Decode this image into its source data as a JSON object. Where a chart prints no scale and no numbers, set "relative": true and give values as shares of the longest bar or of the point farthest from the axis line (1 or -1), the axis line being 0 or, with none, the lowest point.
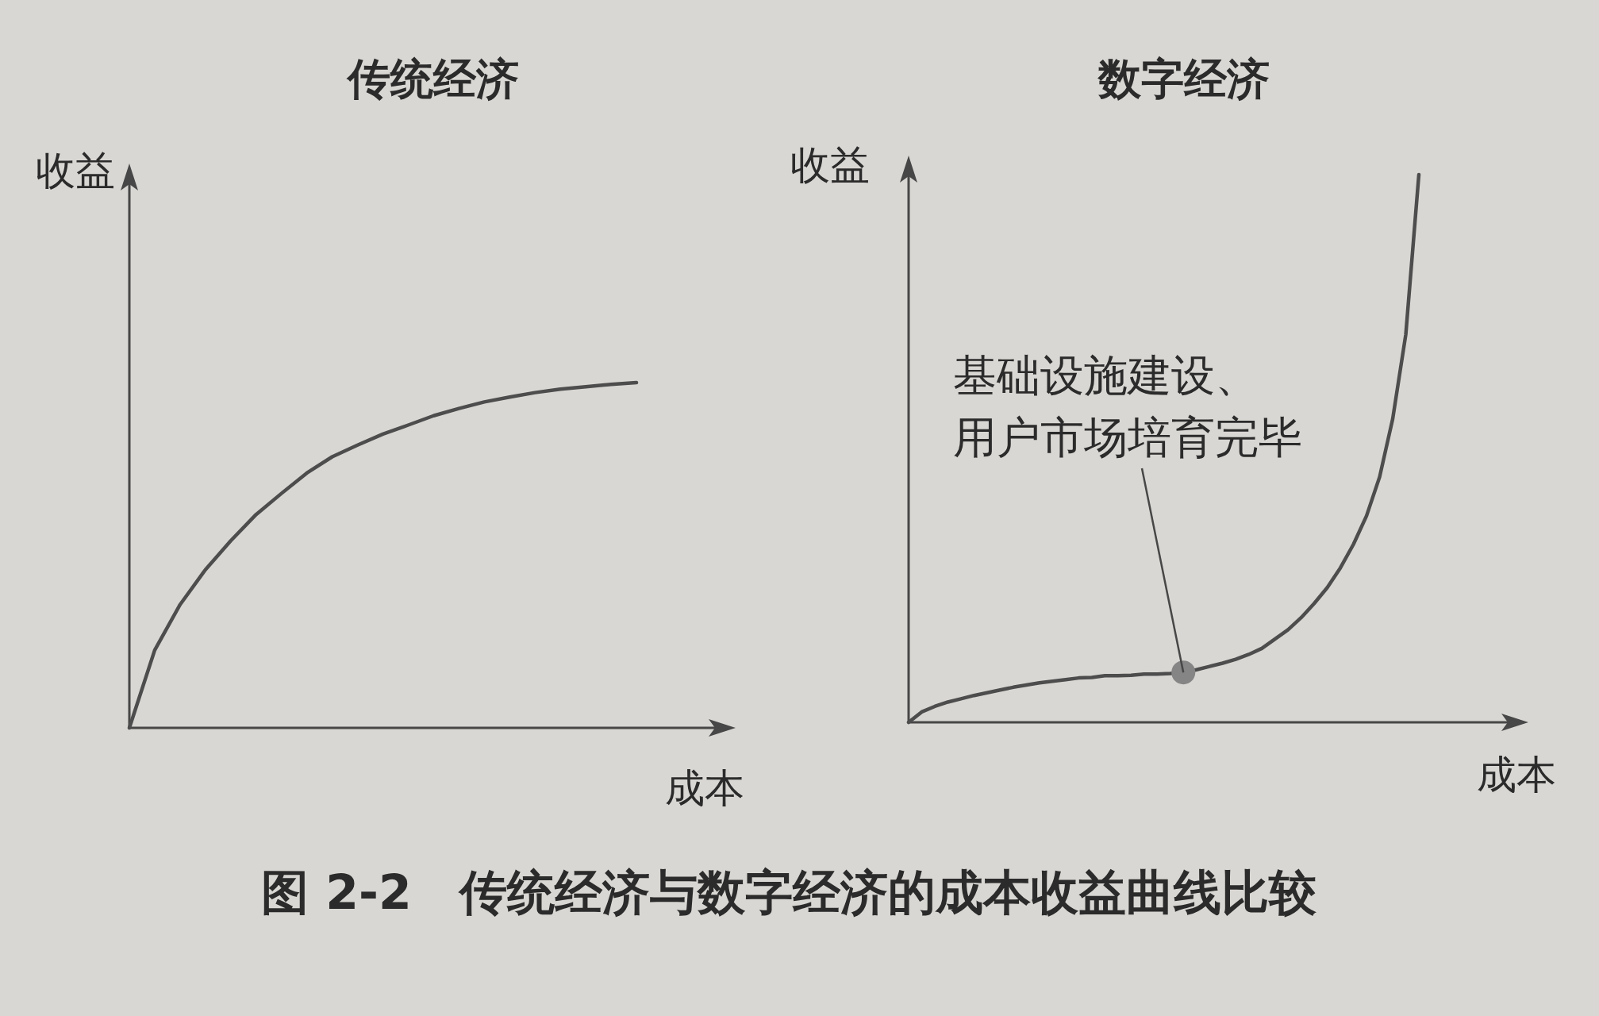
{
  "chart_data": [
    {
      "type": "line",
      "title": "传统经济",
      "xlabel": "成本",
      "ylabel": "收益",
      "relative": true,
      "categories": [
        null,
        null,
        null,
        null,
        null,
        null,
        null,
        null,
        null,
        null,
        null,
        null,
        null,
        null,
        null,
        null,
        null,
        null,
        null,
        null,
        null
      ],
      "series": [
        {
          "color": "#4d4d4d",
          "values": [
            0,
            0.225,
            0.357,
            0.458,
            0.542,
            0.618,
            0.679,
            0.738,
            0.785,
            0.819,
            0.851,
            0.877,
            0.904,
            0.925,
            0.944,
            0.958,
            0.971,
            0.981,
            0.988,
            0.995,
            1
          ]
        }
      ]
    },
    {
      "type": "line",
      "title": "数字经济",
      "xlabel": "成本",
      "ylabel": "收益",
      "relative": true,
      "categories": [
        null,
        null,
        null,
        null,
        null,
        null,
        null,
        null,
        null,
        null,
        null,
        null,
        null,
        null,
        null,
        null,
        null,
        null,
        null,
        null,
        null,
        null,
        null,
        null,
        null,
        null,
        null,
        null,
        null,
        null,
        null,
        null,
        null,
        null,
        null,
        null,
        null,
        null,
        null,
        null
      ],
      "series": [
        {
          "color": "#4d4d4d",
          "values": [
            0,
            0.019,
            0.029,
            0.037,
            0.043,
            0.049,
            0.054,
            0.059,
            0.064,
            0.068,
            0.072,
            0.075,
            0.078,
            0.081,
            0.082,
            0.085,
            0.085,
            0.086,
            0.088,
            0.088,
            0.089,
            0.091,
            0.096,
            0.102,
            0.108,
            0.115,
            0.124,
            0.135,
            0.152,
            0.169,
            0.191,
            0.217,
            0.246,
            0.282,
            0.325,
            0.377,
            0.448,
            0.554,
            0.708,
            1
          ]
        },
        {
          "marker": "circle",
          "color": "#858585",
          "values": [
            null,
            null,
            null,
            null,
            null,
            null,
            null,
            null,
            null,
            null,
            null,
            null,
            null,
            null,
            null,
            null,
            null,
            null,
            null,
            null,
            null,
            0.091,
            null,
            null,
            null,
            null,
            null,
            null,
            null,
            null,
            null,
            null,
            null,
            null,
            null,
            null,
            null,
            null,
            null,
            null
          ]
        }
      ],
      "annotations": [
        "基础设施建设、用户市场培育完毕"
      ]
    },
    {
      "type": "other",
      "title": "图 2-2　传统经济与数字经济的成本收益曲线比较"
    }
  ]
}
